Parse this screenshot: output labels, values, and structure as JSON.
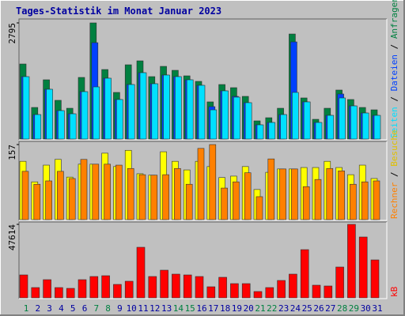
{
  "chart_data": [
    {
      "type": "bar",
      "title": "Tages-Statistik im Monat Januar 2023",
      "ylim": [
        0,
        2795
      ],
      "yticks": [
        2795
      ],
      "legend_separator": " / ",
      "series": [
        {
          "name": "Anfragen",
          "color": "#008040",
          "values": [
            1806,
            760,
            1426,
            932,
            741,
            1483,
            2795,
            1673,
            1122,
            1787,
            1882,
            1502,
            1749,
            1654,
            1521,
            1388,
            894,
            1312,
            1236,
            1027,
            437,
            513,
            741,
            2528,
            989,
            475,
            741,
            1179,
            951,
            760,
            703
          ]
        },
        {
          "name": "Dateien",
          "color": "#0040ff",
          "values": [
            1502,
            589,
            1198,
            684,
            608,
            1141,
            2319,
            1464,
            951,
            1312,
            1597,
            1331,
            1540,
            1502,
            1426,
            1293,
            780,
            1160,
            1027,
            875,
            342,
            399,
            589,
            2338,
            894,
            399,
            570,
            1084,
            798,
            627,
            570
          ]
        },
        {
          "name": "Seiten",
          "color": "#00e0ff",
          "values": [
            1502,
            589,
            1198,
            684,
            608,
            1141,
            1255,
            1464,
            951,
            1312,
            1597,
            1331,
            1540,
            1502,
            1426,
            1293,
            703,
            1160,
            1008,
            875,
            342,
            399,
            589,
            1122,
            894,
            399,
            570,
            989,
            798,
            627,
            570
          ]
        }
      ]
    },
    {
      "type": "bar",
      "ylim": [
        0,
        157
      ],
      "yticks": [
        157
      ],
      "legend_separator": " / ",
      "series": [
        {
          "name": "Besuche",
          "color": "#ffff00",
          "values": [
            122,
            79,
            114,
            126,
            89,
            116,
            116,
            139,
            111,
            145,
            96,
            93,
            142,
            122,
            104,
            122,
            111,
            88,
            91,
            111,
            63,
            99,
            106,
            106,
            109,
            109,
            122,
            109,
            94,
            114,
            86
          ]
        },
        {
          "name": "Rechner",
          "color": "#ff8000",
          "values": [
            101,
            74,
            81,
            101,
            86,
            126,
            116,
            116,
            114,
            107,
            94,
            93,
            94,
            107,
            74,
            149,
            157,
            66,
            79,
            98,
            48,
            127,
            106,
            106,
            69,
            84,
            107,
            102,
            74,
            79,
            81
          ]
        }
      ]
    },
    {
      "type": "bar",
      "ylim": [
        0,
        47614
      ],
      "yticks": [
        47614
      ],
      "categories": [
        "1",
        "2",
        "3",
        "4",
        "5",
        "6",
        "7",
        "8",
        "9",
        "10",
        "11",
        "12",
        "13",
        "14",
        "15",
        "16",
        "17",
        "18",
        "19",
        "20",
        "21",
        "22",
        "23",
        "24",
        "25",
        "26",
        "27",
        "28",
        "29",
        "30",
        "31"
      ],
      "category_colors": [
        "#008040",
        "#0000a0",
        "#0000a0",
        "#0000a0",
        "#0000a0",
        "#0000a0",
        "#008040",
        "#008040",
        "#0000a0",
        "#0000a0",
        "#0000a0",
        "#0000a0",
        "#0000a0",
        "#008040",
        "#008040",
        "#0000a0",
        "#0000a0",
        "#0000a0",
        "#0000a0",
        "#0000a0",
        "#008040",
        "#008040",
        "#0000a0",
        "#0000a0",
        "#0000a0",
        "#0000a0",
        "#0000a0",
        "#008040",
        "#008040",
        "#0000a0",
        "#0000a0"
      ],
      "series": [
        {
          "name": "kB",
          "color": "#ff0000",
          "values": [
            14848,
            6656,
            11776,
            6656,
            6144,
            11776,
            13824,
            14336,
            8704,
            10752,
            32768,
            13824,
            17920,
            15360,
            14848,
            13824,
            7168,
            13312,
            9216,
            9216,
            4096,
            6656,
            11264,
            15360,
            31232,
            8192,
            7680,
            19968,
            47614,
            39424,
            24576
          ]
        }
      ]
    }
  ]
}
